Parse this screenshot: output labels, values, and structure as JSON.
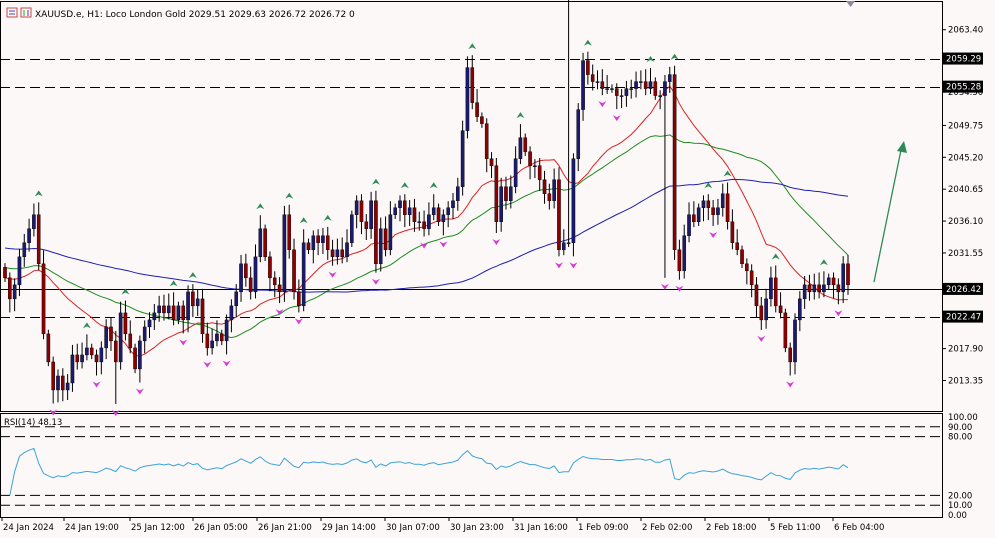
{
  "header": {
    "symbol_info": "XAUUSD.e, H1:  Loco London Gold  2029.51 2029.63 2026.72 2026.72  0"
  },
  "rsi_panel": {
    "title": "RSI(14) 48.13"
  },
  "colors": {
    "bull_candle": "#1a1a6e",
    "bear_candle": "#8b0000",
    "ma_fast": "#dd2222",
    "ma_mid": "#1e8c1e",
    "ma_slow": "#1f1fb0",
    "rsi_line": "#3ba3d9",
    "fractal_up": "#2e8b57",
    "fractal_down": "#d63bd6",
    "price_tag": "#000000"
  },
  "chart_data": [
    {
      "type": "candlestick",
      "symbol": "XAUUSD.e",
      "timeframe": "H1",
      "price_axis_ticks": [
        2063.4,
        2054.5,
        2049.75,
        2045.2,
        2040.65,
        2036.1,
        2031.55,
        2017.9,
        2013.35
      ],
      "ylim": [
        2009.0,
        2067.5
      ],
      "horizontal_levels": [
        2059.29,
        2055.28,
        2026.42,
        2022.47
      ],
      "price_tags": [
        "2059.29",
        "2055.28",
        "2026.42",
        "2022.47"
      ],
      "time_axis_labels": [
        "24 Jan 2024",
        "24 Jan 19:00",
        "25 Jan 12:00",
        "26 Jan 05:00",
        "26 Jan 21:00",
        "29 Jan 14:00",
        "30 Jan 07:00",
        "30 Jan 23:00",
        "31 Jan 16:00",
        "1 Feb 09:00",
        "2 Feb 02:00",
        "2 Feb 18:00",
        "5 Feb 11:00",
        "6 Feb 04:00"
      ],
      "candles_close": [
        2028,
        2025,
        2027,
        2031,
        2033,
        2035,
        2037,
        2030,
        2020,
        2016,
        2012,
        2014,
        2012,
        2013,
        2017,
        2016,
        2017,
        2018,
        2017,
        2016,
        2018,
        2021,
        2019,
        2016,
        2023,
        2020,
        2018,
        2015,
        2019,
        2021,
        2022,
        2023,
        2024,
        2023,
        2024,
        2022,
        2024,
        2022,
        2026,
        2024,
        2025,
        2020,
        2018,
        2019,
        2020,
        2019,
        2022,
        2024,
        2026,
        2030,
        2028,
        2026,
        2031,
        2035,
        2031,
        2028,
        2027,
        2026,
        2037,
        2032,
        2026,
        2024,
        2033,
        2032,
        2034,
        2033,
        2034,
        2032,
        2031,
        2032,
        2031,
        2033,
        2037,
        2039,
        2036,
        2035,
        2039,
        2030,
        2035,
        2032,
        2037,
        2038,
        2039,
        2037,
        2038,
        2036,
        2036,
        2035,
        2037,
        2038,
        2036,
        2037,
        2038,
        2039,
        2041,
        2049,
        2058,
        2053,
        2051,
        2050,
        2045,
        2044,
        2036,
        2041,
        2039,
        2041,
        2045,
        2048,
        2046,
        2044,
        2044,
        2042,
        2040,
        2039,
        2042,
        2032,
        2033,
        2033,
        2045,
        2052,
        2059,
        2057,
        2056,
        2056,
        2055,
        2055,
        2055,
        2054,
        2054,
        2055,
        2055,
        2056,
        2056,
        2055,
        2056,
        2054,
        2054,
        2056,
        2057,
        2032,
        2029,
        2034,
        2037,
        2036,
        2038,
        2039,
        2038,
        2037,
        2038,
        2040,
        2036,
        2033,
        2032,
        2030,
        2029,
        2027,
        2024,
        2022,
        2025,
        2028,
        2024,
        2023,
        2018,
        2016,
        2022,
        2025,
        2027,
        2026,
        2027,
        2026,
        2027,
        2028,
        2027,
        2026,
        2030,
        2027
      ],
      "moving_averages": [
        {
          "name": "MA fast",
          "color": "#dd2222"
        },
        {
          "name": "MA mid",
          "color": "#1e8c1e"
        },
        {
          "name": "MA slow",
          "color": "#1f1fb0"
        }
      ],
      "annotation": "green arrow pointing up-right"
    },
    {
      "type": "line",
      "indicator": "RSI(14)",
      "current_value": 48.13,
      "levels": [
        100,
        90,
        80,
        20,
        10,
        0
      ],
      "level_labels": [
        "100.00",
        "90.00",
        "80.00",
        "20.00",
        "10.00",
        "0.00"
      ],
      "ylim": [
        0,
        100
      ]
    }
  ]
}
